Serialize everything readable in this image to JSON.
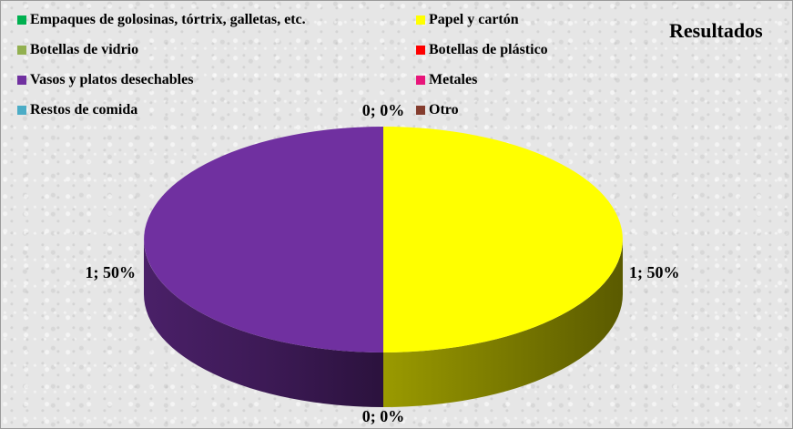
{
  "chart_data": {
    "type": "pie",
    "title": "Resultados",
    "three_d": true,
    "legend_position": "top",
    "categories": [
      "Empaques de golosinas, tórtrix, galletas, etc.",
      "Papel y cartón",
      "Botellas de vidrio",
      "Botellas de plástico",
      "Vasos y platos desechables",
      "Metales",
      "Restos de comida",
      "Otro"
    ],
    "values": [
      0,
      1,
      0,
      0,
      1,
      0,
      0,
      0
    ],
    "colors": [
      "#00b050",
      "#ffff00",
      "#92b050",
      "#ff0000",
      "#7030a0",
      "#e8157a",
      "#4bacc6",
      "#843c2e"
    ],
    "data_labels": [
      {
        "text": "1; 50%",
        "category": "Papel y cartón"
      },
      {
        "text": "1; 50%",
        "category": "Vasos y platos desechables"
      },
      {
        "text": "0; 0%",
        "category": "top"
      },
      {
        "text": "0; 0%",
        "category": "bottom"
      }
    ]
  }
}
